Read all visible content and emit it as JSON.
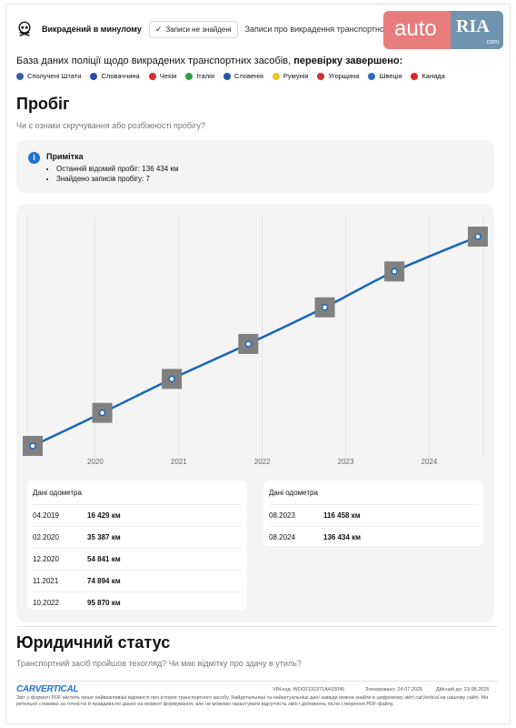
{
  "header": {
    "stolen_title": "Викрадений в минулому",
    "status_pill": "Записи не знайдені",
    "description": "Записи про викрадення транспортного засобу"
  },
  "logo": {
    "auto": "auto",
    "ria": "RIA",
    "com": ".com"
  },
  "database": {
    "prefix": "База даних поліції щодо викрадених транспортних засобів,",
    "status": "перевірку завершено:",
    "countries": [
      {
        "name": "Сполучені Штати",
        "color": "#3c5bb0"
      },
      {
        "name": "Словаччина",
        "color": "#2a4aa8"
      },
      {
        "name": "Чехія",
        "color": "#d22e2e"
      },
      {
        "name": "Італія",
        "color": "#2f9e44"
      },
      {
        "name": "Словенія",
        "color": "#2452a8"
      },
      {
        "name": "Румунія",
        "color": "#f2c12e"
      },
      {
        "name": "Угорщина",
        "color": "#cc3333"
      },
      {
        "name": "Швеція",
        "color": "#2b6cc4"
      },
      {
        "name": "Канада",
        "color": "#d62828"
      }
    ]
  },
  "mileage": {
    "title": "Пробіг",
    "subtitle": "Чи є ознаки скручування або розбіжності пробігу?",
    "note_title": "Примітка",
    "note_items": [
      "Останній відомий пробіг: 136 434 км",
      "Знайдено записів пробігу: 7"
    ],
    "table_header": "Дані одометра",
    "left_rows": [
      {
        "date": "04.2019",
        "value": "16 429 км"
      },
      {
        "date": "02.2020",
        "value": "35 387 км"
      },
      {
        "date": "12.2020",
        "value": "54 841 км"
      },
      {
        "date": "11.2021",
        "value": "74 894 км"
      },
      {
        "date": "10.2022",
        "value": "95 870 км"
      }
    ],
    "right_rows": [
      {
        "date": "08.2023",
        "value": "116 458 км"
      },
      {
        "date": "08.2024",
        "value": "136 434 км"
      }
    ]
  },
  "chart_data": {
    "type": "line",
    "x": [
      "2019-04",
      "2020-02",
      "2020-12",
      "2021-11",
      "2022-10",
      "2023-08",
      "2024-08"
    ],
    "values": [
      16429,
      35387,
      54841,
      74894,
      95870,
      116458,
      136434
    ],
    "tick_labels": [
      "2020",
      "2021",
      "2022",
      "2023",
      "2024"
    ],
    "line_color": "#1565c0",
    "marker_bg": "#808080",
    "grid": true
  },
  "legal": {
    "title": "Юридичний статус",
    "subtitle": "Транспортний засіб пройшов техогляд? Чи має відмітку про здачу в утиль?"
  },
  "footer": {
    "brand": "CARVERTICAL",
    "vin": "VIN-код: WDD2132371A433045",
    "generated": "Згенеровано: 24.07.2025",
    "valid": "Дійсний до: 23.08.2025",
    "disclaimer": "Звіт у форматі PDF містить лише найважливіші відомості про історію транспортного засобу. Найдетальніші та найактуальніші дані завжди можна знайти в цифровому звіті carVertical на нашому сайті. Ми ретельно стежимо за точністю й правдивістю даних на момент формування, але не можемо гарантувати відсутність змін і доповнень після створення PDF-файлу."
  }
}
